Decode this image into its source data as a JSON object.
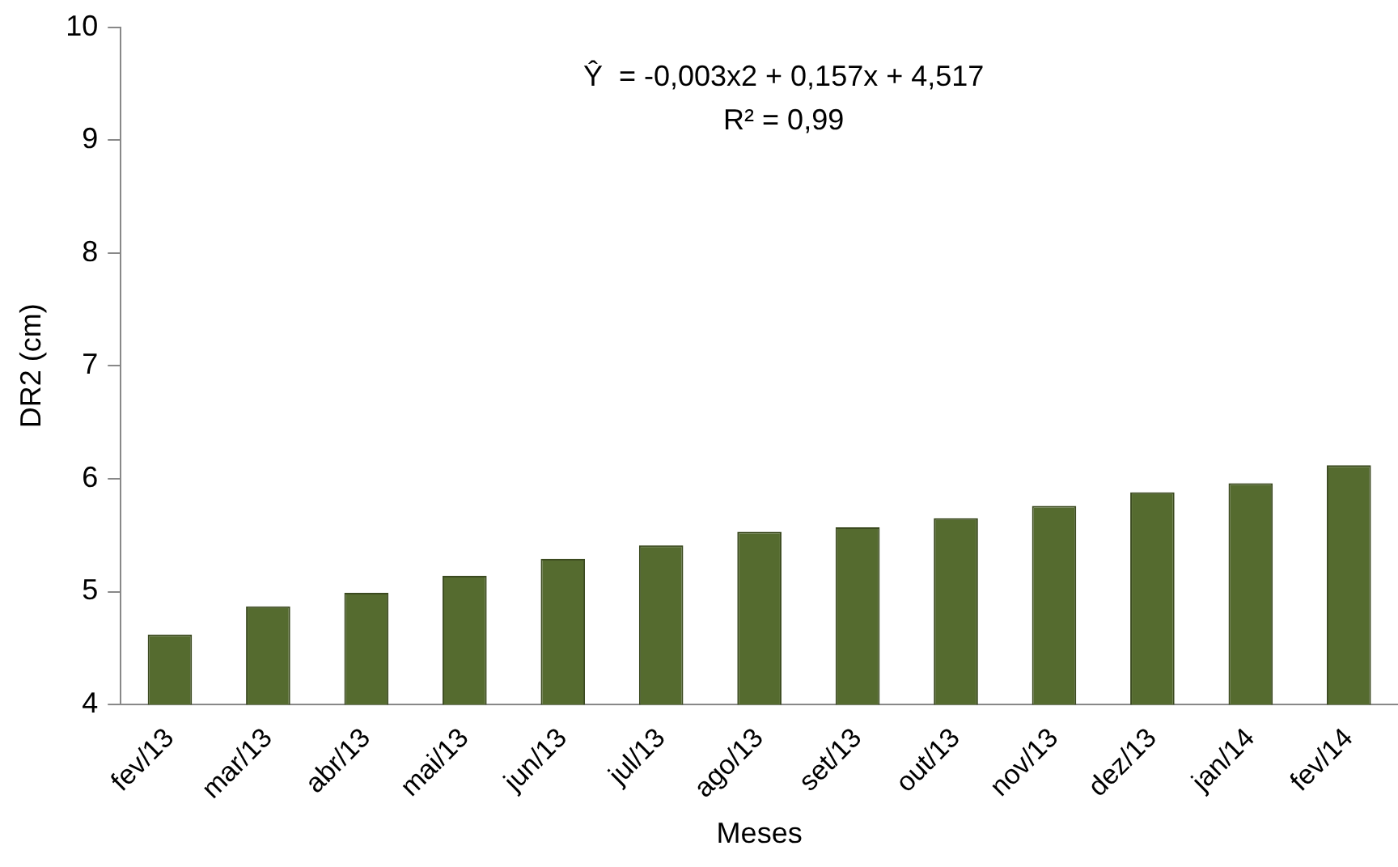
{
  "chart_data": {
    "type": "bar",
    "xlabel": "Meses",
    "ylabel": "DR2 (cm)",
    "categories": [
      "fev/13",
      "mar/13",
      "abr/13",
      "mai/13",
      "jun/13",
      "jul/13",
      "ago/13",
      "set/13",
      "out/13",
      "nov/13",
      "dez/13",
      "jan/14",
      "fev/14"
    ],
    "values": [
      4.62,
      4.87,
      4.99,
      5.14,
      5.29,
      5.41,
      5.53,
      5.57,
      5.65,
      5.76,
      5.88,
      5.96,
      6.12
    ],
    "color": "#556b2f",
    "ylim": [
      4,
      10
    ],
    "yticks": [
      4,
      5,
      6,
      7,
      8,
      9,
      10
    ],
    "grid": false,
    "legend": false,
    "annotations": [
      "Ŷ  = -0,003x2 + 0,157x + 4,517",
      "R² = 0,99"
    ]
  }
}
